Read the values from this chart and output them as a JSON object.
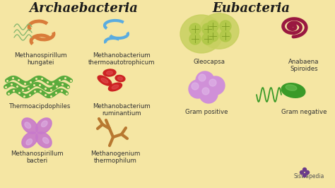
{
  "bg_color": "#f5e6a3",
  "title_archae": "Archaebacteria",
  "title_eubact": "Eubacteria",
  "title_color": "#1a1a1a",
  "title_fontsize": 13,
  "label_fontsize": 6.2,
  "label_color": "#333333",
  "labels": {
    "methanospirillum_hungatei": "Methanospirillum\nhungatei",
    "methanobacterium_thermo": "Methanobacterium\nthermoautotrophicum",
    "thermoacipdophiles": "Thermoacipdophiles",
    "methanobacterium_rumi": "Methanobacterium\nruminantium",
    "methanospirillum_bacteri": "Methanospirillum\nbacteri",
    "methanogenium": "Methanogenium\nthermophilum",
    "gleocapsa": "Gleocapsa",
    "anabaena": "Anabaena\nSpiroides",
    "gram_positive": "Gram positive",
    "gram_negative": "Gram negative"
  },
  "colors": {
    "orange": "#d97c3a",
    "orange_tail": "#8ab870",
    "blue": "#5aace0",
    "green": "#5aab3c",
    "red": "#cc2222",
    "purple": "#c87acc",
    "brown": "#b87830",
    "yg_outer": "#c8d060",
    "yg_inner": "#a0b840",
    "yg_cell": "#b0c848",
    "dark_green": "#3a9a28",
    "dark_red": "#991840",
    "lavender": "#d090d8",
    "lav_light": "#e0b8e8",
    "siswapedia": "#555555"
  }
}
